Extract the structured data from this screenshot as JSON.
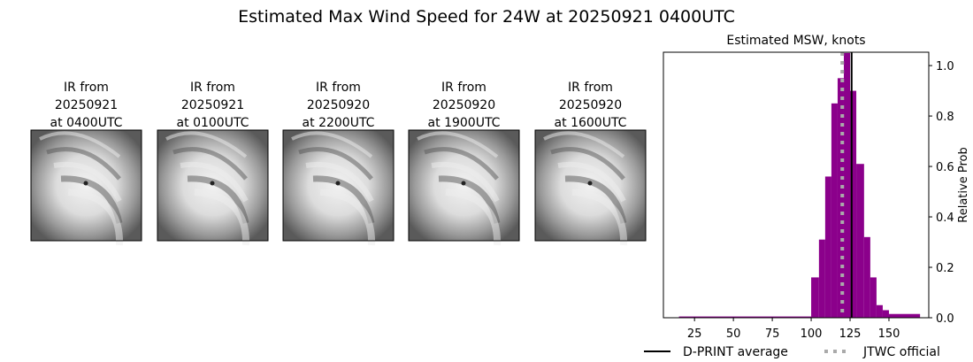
{
  "title": "Estimated Max Wind Speed for 24W at 20250921 0400UTC",
  "panels": [
    {
      "lines": [
        "IR from",
        "20250921",
        "at 0400UTC"
      ]
    },
    {
      "lines": [
        "IR from",
        "20250921",
        "at 0100UTC"
      ]
    },
    {
      "lines": [
        "IR from",
        "20250920",
        "at 2200UTC"
      ]
    },
    {
      "lines": [
        "IR from",
        "20250920",
        "at 1900UTC"
      ]
    },
    {
      "lines": [
        "IR from",
        "20250920",
        "at 1600UTC"
      ]
    }
  ],
  "chart_data": {
    "type": "histogram",
    "title": "Estimated MSW, knots",
    "ylabel": "Relative Prob",
    "bins": [
      15,
      100,
      105,
      109,
      113,
      117,
      121,
      125,
      129,
      134,
      138,
      142,
      146,
      150,
      170
    ],
    "counts": [
      0.005,
      0.16,
      0.31,
      0.56,
      0.85,
      0.95,
      1.05,
      0.9,
      0.61,
      0.32,
      0.16,
      0.05,
      0.03,
      0.015
    ],
    "color": "#8b008b",
    "xlim": [
      5,
      175.6
    ],
    "xticks": [
      25,
      50,
      75,
      100,
      125,
      150
    ],
    "ylim": [
      0,
      1.053
    ],
    "yticks": [
      {
        "value": 0,
        "label": "0.0"
      },
      {
        "value": 0.2,
        "label": "0.2"
      },
      {
        "value": 0.4,
        "label": "0.4"
      },
      {
        "value": 0.6,
        "label": "0.6"
      },
      {
        "value": 0.8,
        "label": "0.8"
      },
      {
        "value": 1.0,
        "label": "1.0"
      }
    ],
    "lines": [
      {
        "name": "D-PRINT average",
        "value": 126,
        "color": "#000000",
        "style": "solid"
      },
      {
        "name": "JTWC official",
        "value": 120,
        "color": "#aaaaaa",
        "style": "dotted"
      }
    ]
  }
}
